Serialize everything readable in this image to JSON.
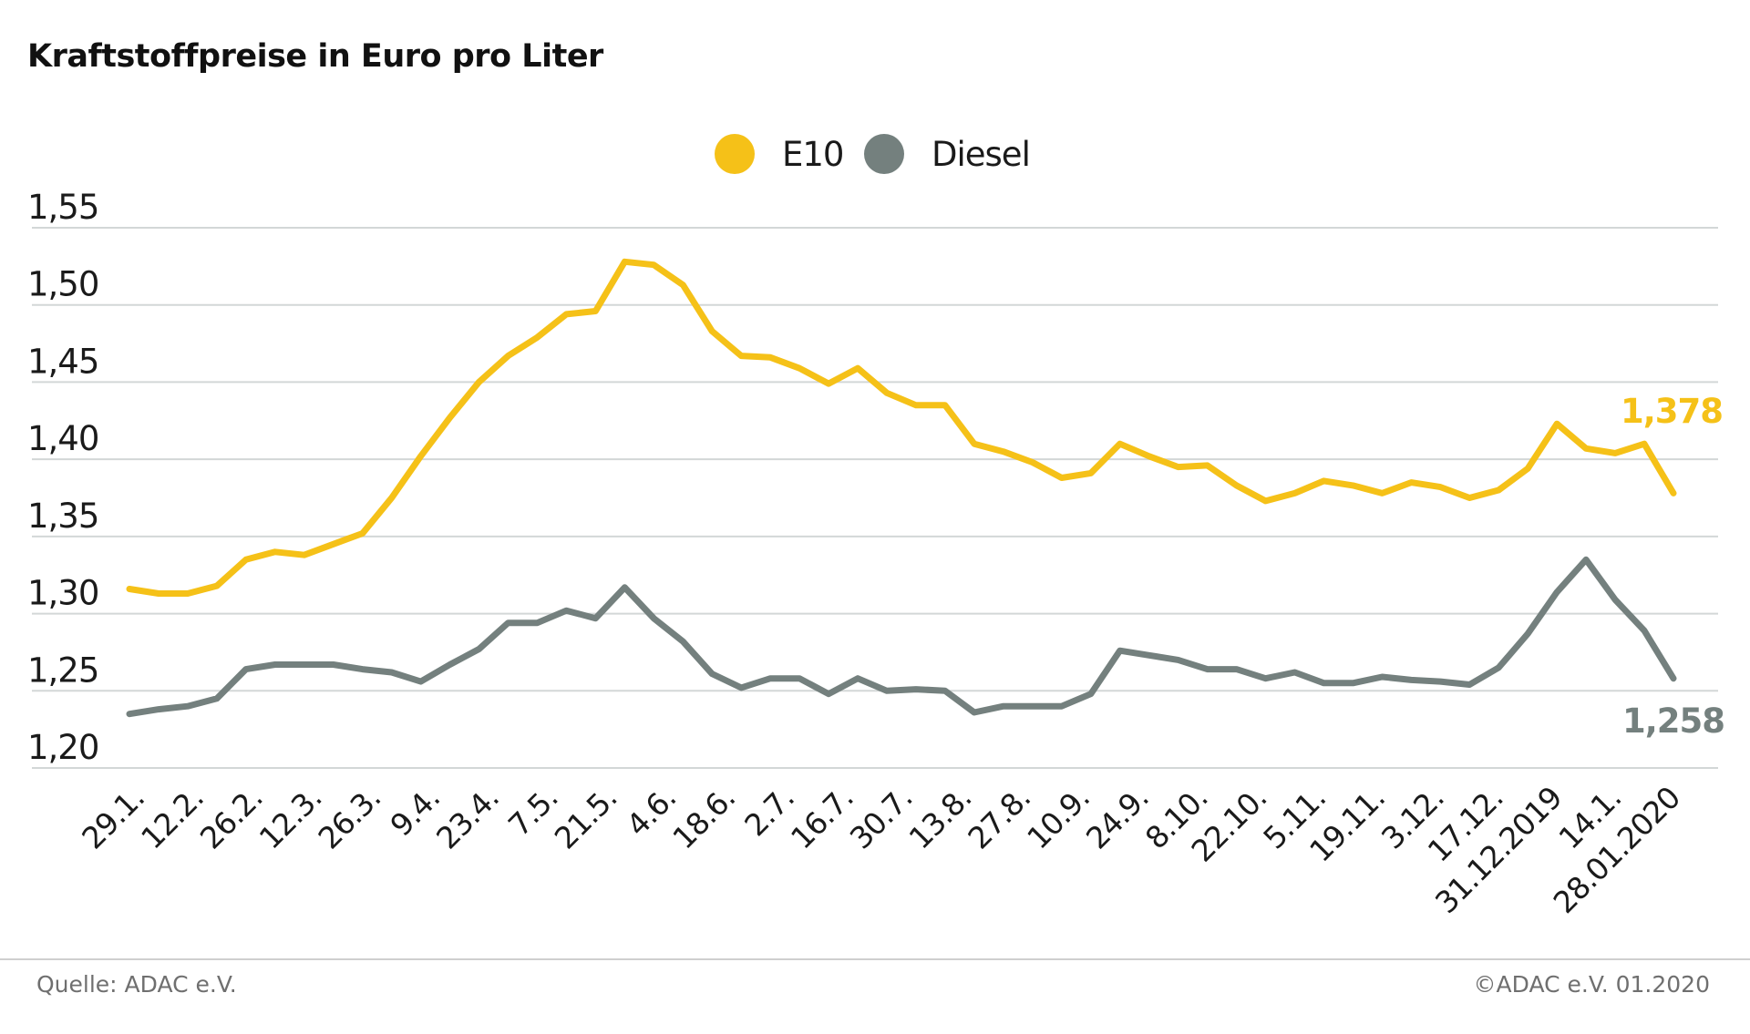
{
  "title": "Kraftstoffpreise in Euro pro Liter",
  "footer": {
    "source": "Quelle: ADAC e.V.",
    "copyright": "©ADAC e.V.  01.2020"
  },
  "colors": {
    "e10": "#f5c118",
    "diesel": "#74807e",
    "grid": "#d3d7d7",
    "text": "#1a1a1a"
  },
  "chart_data": {
    "type": "line",
    "title": "Kraftstoffpreise in Euro pro Liter",
    "legend": {
      "position": "top-center",
      "entries": [
        "E10",
        "Diesel"
      ]
    },
    "grid": true,
    "ylim": [
      1.2,
      1.55
    ],
    "yticks": [
      "1,55",
      "1,50",
      "1,45",
      "1,40",
      "1,35",
      "1,30",
      "1,25",
      "1,20"
    ],
    "ytick_values": [
      1.55,
      1.5,
      1.45,
      1.4,
      1.35,
      1.3,
      1.25,
      1.2
    ],
    "xtick_labels": [
      "29.1.",
      "12.2.",
      "26.2.",
      "12.3.",
      "26.3.",
      "9.4.",
      "23.4.",
      "7.5.",
      "21.5.",
      "4.6.",
      "18.6.",
      "2.7.",
      "16.7.",
      "30.7.",
      "13.8.",
      "27.8.",
      "10.9.",
      "24.9.",
      "8.10.",
      "22.10.",
      "5.11.",
      "19.11.",
      "3.12.",
      "17.12.",
      "31.12.2019",
      "14.1.",
      "28.01.2020"
    ],
    "series": [
      {
        "name": "E10",
        "end_label": "1,378",
        "values": [
          1.316,
          1.313,
          1.313,
          1.318,
          1.335,
          1.34,
          1.338,
          1.345,
          1.352,
          1.375,
          1.402,
          1.427,
          1.45,
          1.467,
          1.479,
          1.494,
          1.496,
          1.528,
          1.526,
          1.513,
          1.483,
          1.467,
          1.466,
          1.459,
          1.449,
          1.459,
          1.443,
          1.435,
          1.435,
          1.41,
          1.405,
          1.398,
          1.388,
          1.391,
          1.41,
          1.402,
          1.395,
          1.396,
          1.383,
          1.373,
          1.378,
          1.386,
          1.383,
          1.378,
          1.385,
          1.382,
          1.375,
          1.38,
          1.394,
          1.423,
          1.407,
          1.404,
          1.41,
          1.378
        ]
      },
      {
        "name": "Diesel",
        "end_label": "1,258",
        "values": [
          1.235,
          1.238,
          1.24,
          1.245,
          1.264,
          1.267,
          1.267,
          1.267,
          1.264,
          1.262,
          1.256,
          1.267,
          1.277,
          1.294,
          1.294,
          1.302,
          1.297,
          1.317,
          1.297,
          1.282,
          1.261,
          1.252,
          1.258,
          1.258,
          1.248,
          1.258,
          1.25,
          1.251,
          1.25,
          1.236,
          1.24,
          1.24,
          1.24,
          1.248,
          1.276,
          1.273,
          1.27,
          1.264,
          1.264,
          1.258,
          1.262,
          1.255,
          1.255,
          1.259,
          1.257,
          1.256,
          1.254,
          1.265,
          1.287,
          1.314,
          1.335,
          1.309,
          1.289,
          1.258
        ]
      }
    ]
  }
}
